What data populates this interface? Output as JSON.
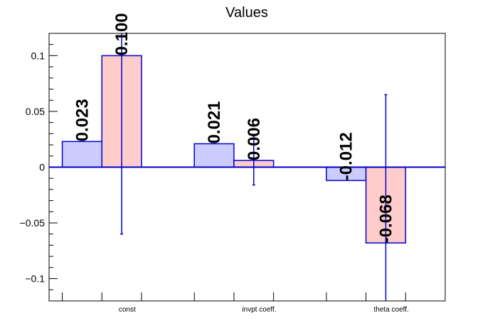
{
  "chart_data": {
    "type": "bar",
    "title": "Values",
    "xlabel": "",
    "ylabel": "",
    "categories": [
      "const",
      "invpt coeff.",
      "theta coeff."
    ],
    "ylim": [
      -0.12,
      0.12
    ],
    "yticks": [
      -0.1,
      -0.05,
      0,
      0.05,
      0.1
    ],
    "ytick_labels": [
      "−0.1",
      "−0.05",
      "0",
      "0.05",
      "0.1"
    ],
    "grid": false,
    "series": [
      {
        "values": [
          0.023,
          0.021,
          -0.012
        ],
        "value_labels": [
          "0.023",
          "0.021",
          "-0.012"
        ],
        "errors": [
          null,
          null,
          null
        ],
        "fill": "#ccccff",
        "stroke": "#0000cc"
      },
      {
        "values": [
          0.1,
          0.006,
          -0.068
        ],
        "value_labels": [
          "0.100",
          "0.006",
          "-0.068"
        ],
        "errors": [
          0.16,
          0.022,
          0.133
        ],
        "fill": "#ffcccc",
        "stroke": "#0000cc"
      }
    ],
    "zero_line_color": "#0000cc",
    "error_bar_color": "#0000cc"
  }
}
